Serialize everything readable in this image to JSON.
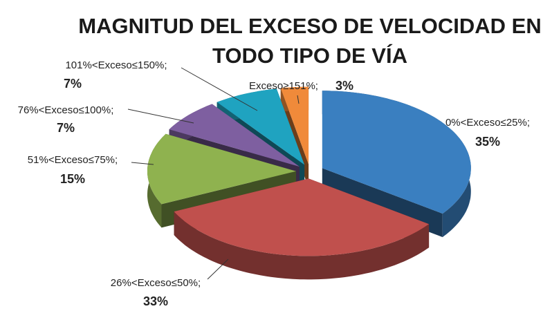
{
  "chart_data": {
    "type": "pie",
    "title": [
      "MAGNITUD DEL EXCESO DE VELOCIDAD EN",
      "TODO TIPO DE VÍA"
    ],
    "categories": [
      "0%<Exceso≤25%;",
      "26%<Exceso≤50%;",
      "51%<Exceso≤75%;",
      "76%<Exceso≤100%;",
      "101%<Exceso≤150%;",
      "Exceso≥151%;"
    ],
    "values": [
      35,
      33,
      15,
      7,
      7,
      3
    ],
    "value_labels": [
      "35%",
      "33%",
      "15%",
      "7%",
      "7%",
      "3%"
    ],
    "colors": [
      "#3a7fc0",
      "#c0504d",
      "#8fb24f",
      "#7e5fa0",
      "#1fa3c0",
      "#f08a3a"
    ],
    "style": "3d-exploded"
  }
}
